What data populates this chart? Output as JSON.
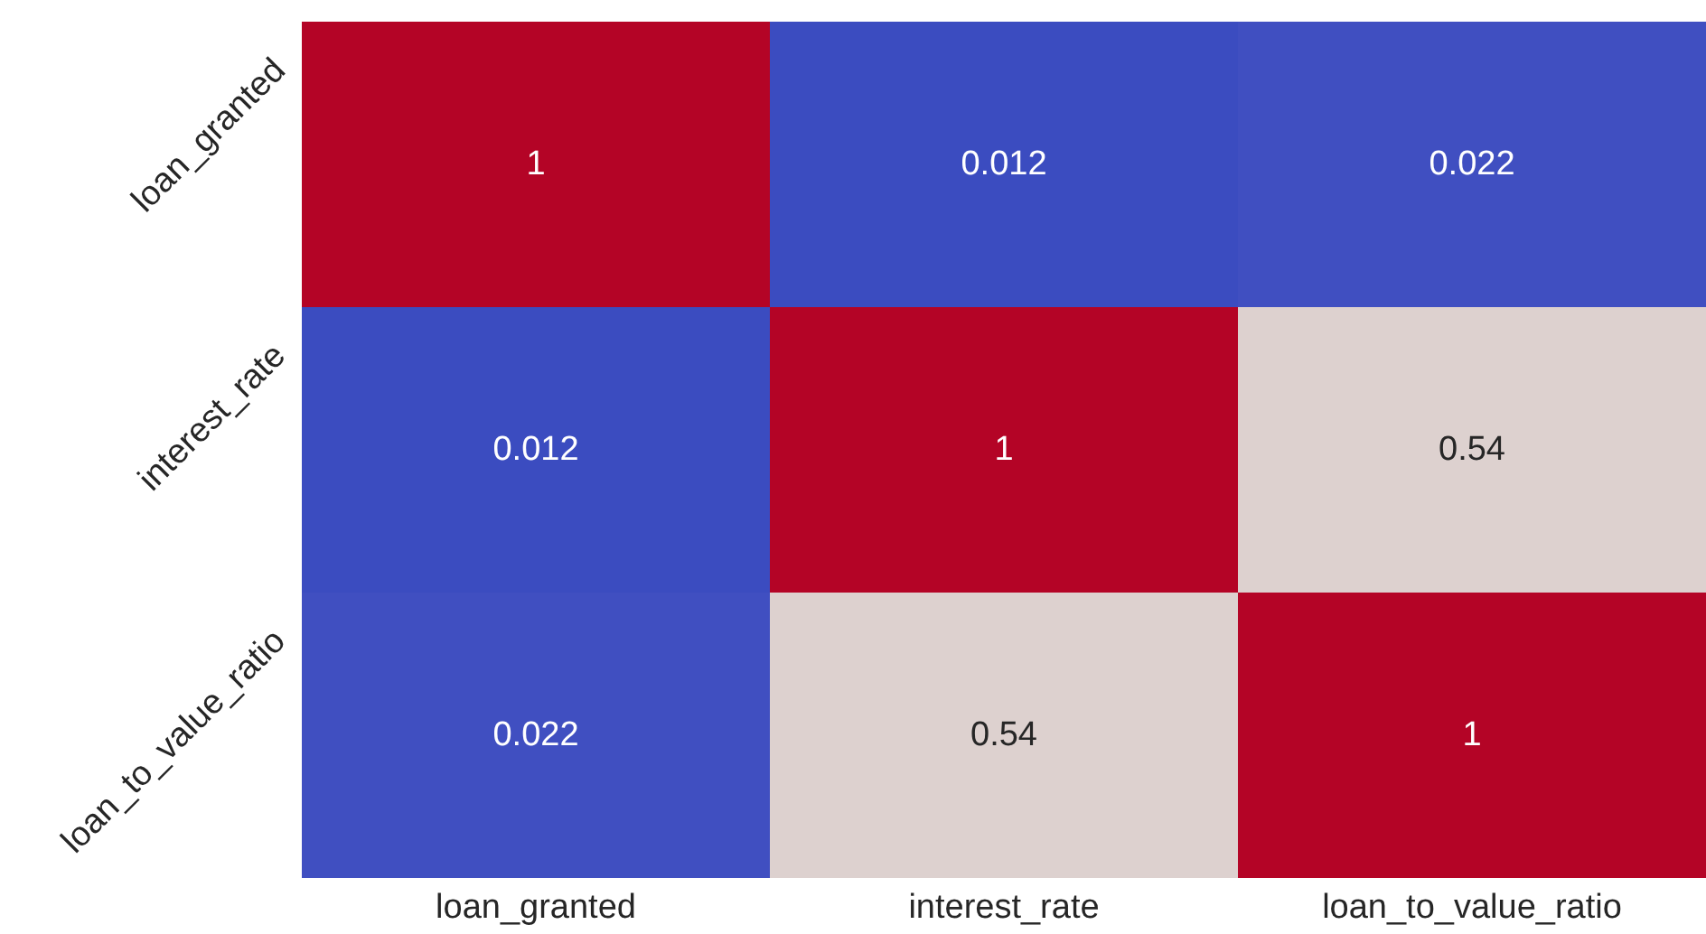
{
  "chart_data": {
    "type": "heatmap",
    "categories": [
      "loan_granted",
      "interest_rate",
      "loan_to_value_ratio"
    ],
    "y_categories": [
      "loan_granted",
      "interest_rate",
      "loan_to_value_ratio"
    ],
    "cells": [
      [
        1,
        0.012,
        0.022
      ],
      [
        0.012,
        1,
        0.54
      ],
      [
        0.022,
        0.54,
        1
      ]
    ],
    "data_labels": true
  }
}
